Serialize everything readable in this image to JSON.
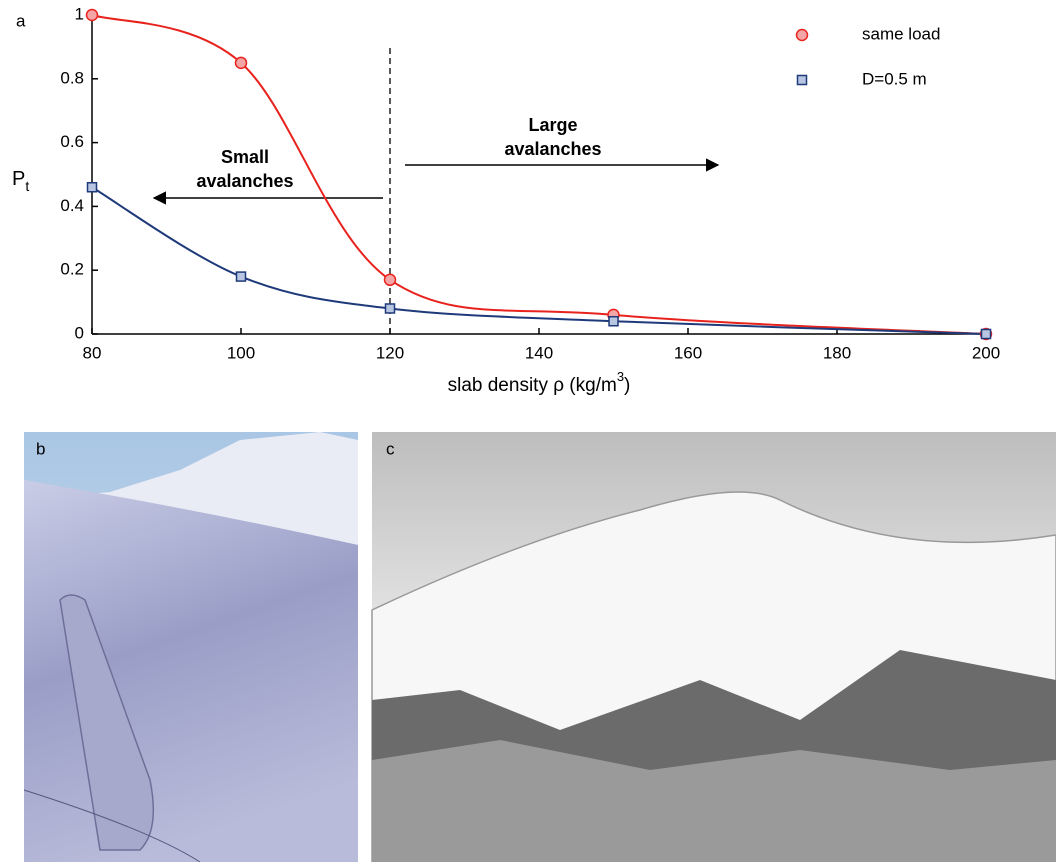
{
  "chart_data": {
    "type": "line",
    "x": [
      80,
      100,
      120,
      150,
      200
    ],
    "series": [
      {
        "name": "same load",
        "color": "#e8231e",
        "marker": "circle",
        "values": [
          1,
          0.85,
          0.17,
          0.06,
          0
        ]
      },
      {
        "name": "D=0.5 m",
        "color": "#1f3a7a",
        "marker": "square",
        "values": [
          0.46,
          0.18,
          0.08,
          0.04,
          0
        ]
      }
    ],
    "xlim": [
      80,
      200
    ],
    "xticks": [
      80,
      100,
      120,
      140,
      160,
      180,
      200
    ],
    "ylim": [
      0,
      1
    ],
    "yticks": [
      0,
      0.2,
      0.4,
      0.6,
      0.8,
      1
    ],
    "ylabel": "P",
    "ylabel_sub": "t",
    "xlabel": "slab density ρ (kg/m",
    "xlabel_sup": "3",
    "xlabel_end": ")",
    "vline": 120,
    "annotations": [
      [
        "Small",
        "avalanches"
      ],
      [
        "Large",
        "avalanches"
      ]
    ]
  },
  "panel_labels": [
    "a",
    "b",
    "c"
  ]
}
